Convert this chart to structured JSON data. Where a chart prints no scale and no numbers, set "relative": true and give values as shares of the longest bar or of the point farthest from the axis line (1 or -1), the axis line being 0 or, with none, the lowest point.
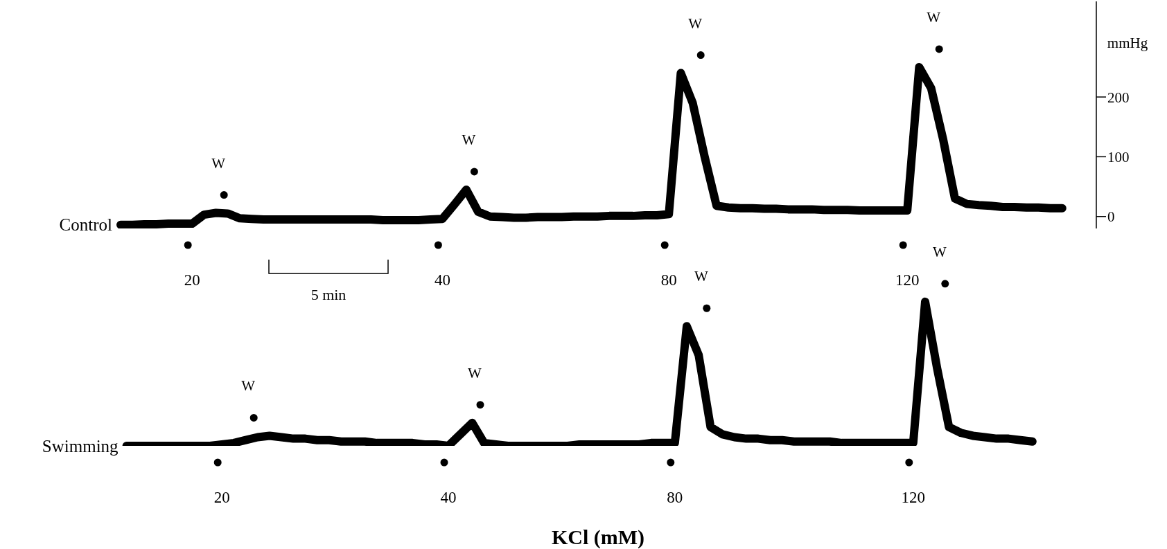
{
  "chart_data": [
    {
      "type": "line",
      "ylabel": "mmHg",
      "ylim": [
        -20,
        360
      ],
      "yticks": [
        0,
        100,
        200
      ],
      "categories": [
        null,
        null,
        null,
        null,
        null,
        null,
        "20",
        null,
        null,
        null,
        null,
        null,
        null,
        null,
        null,
        null,
        null,
        null,
        null,
        null,
        null,
        null,
        null,
        null,
        null,
        null,
        null,
        "40",
        null,
        null,
        null,
        null,
        null,
        null,
        null,
        null,
        null,
        null,
        null,
        null,
        null,
        null,
        null,
        null,
        null,
        null,
        "80",
        null,
        null,
        null,
        null,
        null,
        null,
        null,
        null,
        null,
        null,
        null,
        null,
        null,
        null,
        null,
        null,
        null,
        null,
        null,
        "120",
        null,
        null,
        null,
        null,
        null,
        null,
        null,
        null,
        null,
        null,
        null,
        null,
        null
      ],
      "series": [
        {
          "name": "Control",
          "color": "#000000",
          "values": [
            -14,
            -14,
            -13,
            -13,
            -12,
            -12,
            -12,
            3,
            6,
            5,
            -3,
            -4,
            -5,
            -5,
            -5,
            -5,
            -5,
            -5,
            -5,
            -5,
            -5,
            -5,
            -6,
            -6,
            -6,
            -6,
            -5,
            -4,
            20,
            45,
            8,
            0,
            -1,
            -2,
            -2,
            -1,
            -1,
            -1,
            0,
            0,
            0,
            1,
            1,
            1,
            2,
            2,
            4,
            240,
            190,
            100,
            18,
            15,
            14,
            14,
            13,
            13,
            12,
            12,
            12,
            11,
            11,
            11,
            10,
            10,
            10,
            10,
            10,
            250,
            215,
            130,
            30,
            21,
            19,
            18,
            16,
            16,
            15,
            15,
            14,
            14
          ]
        }
      ],
      "annotations": [
        "W",
        "W",
        "W",
        "W",
        "5 min"
      ]
    },
    {
      "type": "line",
      "xlabel": "KCl (mM)",
      "relative": true,
      "tick_labels": "x",
      "categories": [
        null,
        null,
        null,
        null,
        null,
        null,
        null,
        null,
        "20",
        null,
        null,
        null,
        null,
        null,
        null,
        null,
        null,
        null,
        null,
        null,
        null,
        null,
        null,
        null,
        null,
        null,
        null,
        "40",
        null,
        null,
        null,
        null,
        null,
        null,
        null,
        null,
        null,
        null,
        null,
        null,
        null,
        null,
        null,
        null,
        null,
        null,
        "80",
        null,
        null,
        null,
        null,
        null,
        null,
        null,
        null,
        null,
        null,
        null,
        null,
        null,
        null,
        null,
        null,
        null,
        null,
        null,
        "120",
        null,
        null,
        null,
        null,
        null,
        null,
        null,
        null,
        null,
        null
      ],
      "series": [
        {
          "name": "Swimming",
          "color": "#000000",
          "values": [
            0,
            0,
            0,
            0,
            0,
            0,
            0,
            0,
            0.01,
            0.02,
            0.04,
            0.06,
            0.07,
            0.06,
            0.05,
            0.05,
            0.04,
            0.04,
            0.03,
            0.03,
            0.03,
            0.02,
            0.02,
            0.02,
            0.02,
            0.01,
            0.01,
            0,
            0.08,
            0.16,
            0.02,
            0.01,
            0,
            0,
            0,
            0,
            0,
            0,
            0.01,
            0.01,
            0.01,
            0.01,
            0.01,
            0.01,
            0.02,
            0.02,
            0.02,
            0.83,
            0.63,
            0.13,
            0.08,
            0.06,
            0.05,
            0.05,
            0.04,
            0.04,
            0.03,
            0.03,
            0.03,
            0.03,
            0.02,
            0.02,
            0.02,
            0.02,
            0.02,
            0.02,
            0.02,
            1,
            0.54,
            0.13,
            0.09,
            0.07,
            0.06,
            0.05,
            0.05,
            0.04,
            0.03
          ]
        }
      ],
      "annotations": [
        "W",
        "W",
        "W",
        "W"
      ]
    }
  ]
}
